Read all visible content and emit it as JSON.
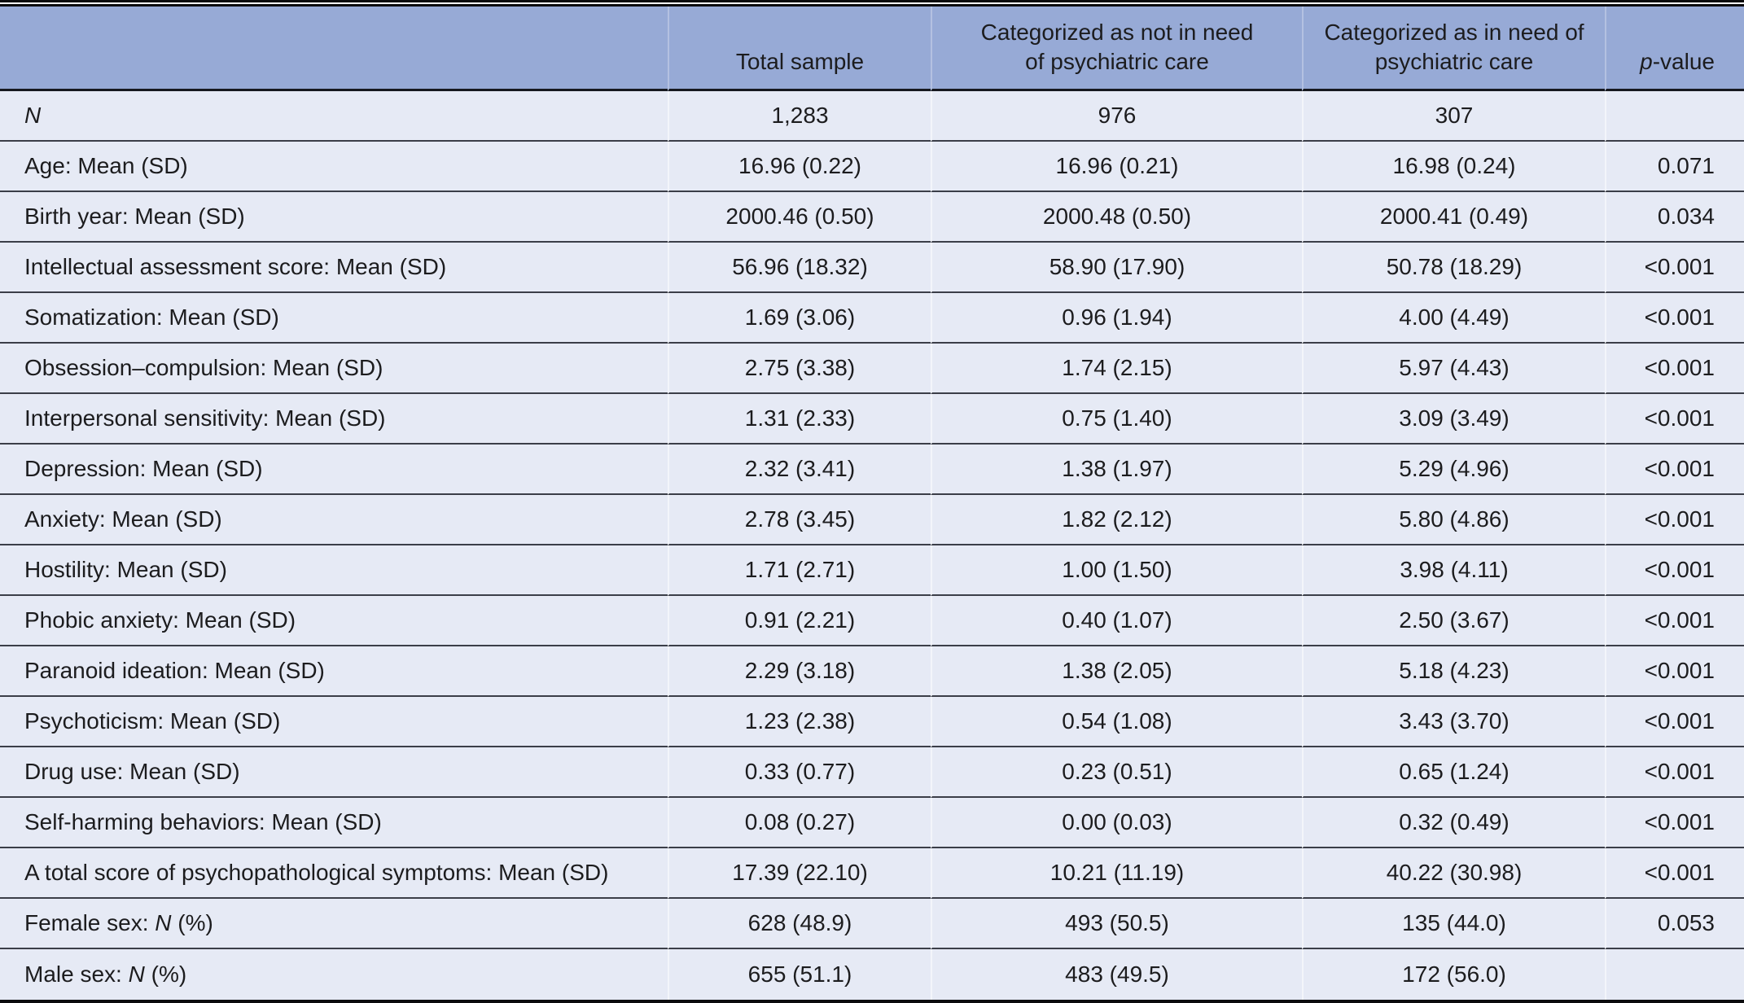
{
  "colors": {
    "header_bg": "#97aad6",
    "row_bg": "#e6eaf5",
    "rule": "#3b3e48",
    "heavy_rule": "#16181f",
    "frame": "#0b0b0d",
    "text": "#1c1c1e"
  },
  "table": {
    "header": {
      "row_label": "",
      "total_sample": "Total sample",
      "not_in_need": "Categorized as not in need\nof psychiatric care",
      "in_need": "Categorized as in need of\npsychiatric care",
      "p_italic": "p",
      "p_rest": "-value"
    },
    "rows": [
      {
        "label": [
          {
            "t": "N",
            "i": true
          }
        ],
        "cells": [
          "1,283",
          "976",
          "307",
          ""
        ]
      },
      {
        "label": [
          {
            "t": "Age: Mean (SD)"
          }
        ],
        "cells": [
          "16.96 (0.22)",
          "16.96 (0.21)",
          "16.98 (0.24)",
          "0.071"
        ]
      },
      {
        "label": [
          {
            "t": "Birth year: Mean (SD)"
          }
        ],
        "cells": [
          "2000.46 (0.50)",
          "2000.48 (0.50)",
          "2000.41 (0.49)",
          "0.034"
        ]
      },
      {
        "label": [
          {
            "t": "Intellectual assessment score: Mean (SD)"
          }
        ],
        "cells": [
          "56.96 (18.32)",
          "58.90 (17.90)",
          "50.78 (18.29)",
          "<0.001"
        ]
      },
      {
        "label": [
          {
            "t": "Somatization: Mean (SD)"
          }
        ],
        "cells": [
          "1.69 (3.06)",
          "0.96 (1.94)",
          "4.00 (4.49)",
          "<0.001"
        ]
      },
      {
        "label": [
          {
            "t": "Obsession–compulsion: Mean (SD)"
          }
        ],
        "cells": [
          "2.75 (3.38)",
          "1.74 (2.15)",
          "5.97 (4.43)",
          "<0.001"
        ]
      },
      {
        "label": [
          {
            "t": "Interpersonal sensitivity: Mean (SD)"
          }
        ],
        "cells": [
          "1.31 (2.33)",
          "0.75 (1.40)",
          "3.09 (3.49)",
          "<0.001"
        ]
      },
      {
        "label": [
          {
            "t": "Depression: Mean (SD)"
          }
        ],
        "cells": [
          "2.32 (3.41)",
          "1.38 (1.97)",
          "5.29 (4.96)",
          "<0.001"
        ]
      },
      {
        "label": [
          {
            "t": "Anxiety: Mean (SD)"
          }
        ],
        "cells": [
          "2.78 (3.45)",
          "1.82 (2.12)",
          "5.80 (4.86)",
          "<0.001"
        ]
      },
      {
        "label": [
          {
            "t": "Hostility: Mean (SD)"
          }
        ],
        "cells": [
          "1.71 (2.71)",
          "1.00 (1.50)",
          "3.98 (4.11)",
          "<0.001"
        ]
      },
      {
        "label": [
          {
            "t": "Phobic anxiety: Mean (SD)"
          }
        ],
        "cells": [
          "0.91 (2.21)",
          "0.40 (1.07)",
          "2.50 (3.67)",
          "<0.001"
        ]
      },
      {
        "label": [
          {
            "t": "Paranoid ideation: Mean (SD)"
          }
        ],
        "cells": [
          "2.29 (3.18)",
          "1.38 (2.05)",
          "5.18 (4.23)",
          "<0.001"
        ]
      },
      {
        "label": [
          {
            "t": "Psychoticism: Mean (SD)"
          }
        ],
        "cells": [
          "1.23 (2.38)",
          "0.54 (1.08)",
          "3.43 (3.70)",
          "<0.001"
        ]
      },
      {
        "label": [
          {
            "t": "Drug use: Mean (SD)"
          }
        ],
        "cells": [
          "0.33 (0.77)",
          "0.23 (0.51)",
          "0.65 (1.24)",
          "<0.001"
        ]
      },
      {
        "label": [
          {
            "t": "Self-harming behaviors: Mean (SD)"
          }
        ],
        "cells": [
          "0.08 (0.27)",
          "0.00 (0.03)",
          "0.32 (0.49)",
          "<0.001"
        ]
      },
      {
        "label": [
          {
            "t": "A total score of psychopathological symptoms: Mean (SD)"
          }
        ],
        "cells": [
          "17.39 (22.10)",
          "10.21 (11.19)",
          "40.22 (30.98)",
          "<0.001"
        ]
      },
      {
        "label": [
          {
            "t": "Female sex: "
          },
          {
            "t": "N",
            "i": true
          },
          {
            "t": " (%)"
          }
        ],
        "cells": [
          "628 (48.9)",
          "493 (50.5)",
          "135 (44.0)",
          "0.053"
        ]
      },
      {
        "label": [
          {
            "t": "Male sex: "
          },
          {
            "t": "N",
            "i": true
          },
          {
            "t": " (%)"
          }
        ],
        "cells": [
          "655 (51.1)",
          "483 (49.5)",
          "172 (56.0)",
          ""
        ]
      }
    ]
  }
}
